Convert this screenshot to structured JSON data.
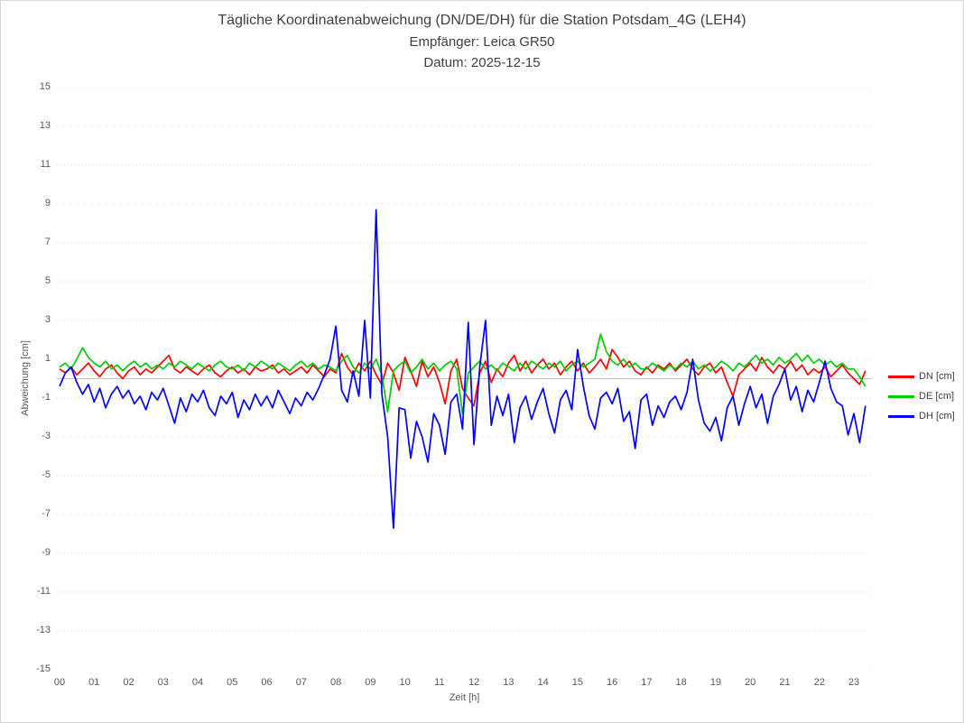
{
  "title": {
    "line1": "Tägliche Koordinatenabweichung (DN/DE/DH) für die Station Potsdam_4G (LEH4)",
    "line2": "Empfänger: Leica GR50",
    "line3": "Datum: 2025-12-15"
  },
  "colors": {
    "dn": "#ff0000",
    "de": "#00cc00",
    "dh": "#0000ff",
    "grid_dotted": "#d9d9d9",
    "grid_zero": "#c0c0c0",
    "tick_text": "#595959",
    "title_text": "#404040",
    "figure_border": "#d6d6d6"
  },
  "chart_data": {
    "type": "line",
    "title": "Tägliche Koordinatenabweichung (DN/DE/DH) für die Station Potsdam_4G (LEH4)",
    "subtitle1": "Empfänger: Leica GR50",
    "subtitle2": "Datum: 2025-12-15",
    "xlabel": "Zeit [h]",
    "ylabel": "Abweichung [cm]",
    "ylim": [
      -15,
      15
    ],
    "xlim_hours": [
      0,
      23.5
    ],
    "yticks": [
      15,
      13,
      11,
      9,
      7,
      5,
      3,
      1,
      -1,
      -3,
      -5,
      -7,
      -9,
      -11,
      -13,
      -15
    ],
    "xticks": [
      "00",
      "01",
      "02",
      "03",
      "04",
      "05",
      "06",
      "07",
      "08",
      "09",
      "10",
      "11",
      "12",
      "13",
      "14",
      "15",
      "16",
      "17",
      "18",
      "19",
      "20",
      "21",
      "22",
      "23"
    ],
    "grid": "horizontal dotted lines at odd values, solid light line at 0, no vertical gridlines",
    "legend_position": "right",
    "x_start_hour": 0,
    "x_step_hours": 0.16667,
    "series": [
      {
        "name": "DN [cm]",
        "color": "#ff0000",
        "values": [
          0.5,
          0.3,
          0.6,
          0.2,
          0.5,
          0.8,
          0.4,
          0.1,
          0.5,
          0.7,
          0.3,
          0.0,
          0.4,
          0.6,
          0.2,
          0.5,
          0.3,
          0.6,
          0.9,
          1.2,
          0.5,
          0.3,
          0.6,
          0.4,
          0.2,
          0.5,
          0.7,
          0.3,
          0.1,
          0.4,
          0.6,
          0.3,
          0.5,
          0.2,
          0.6,
          0.4,
          0.5,
          0.7,
          0.3,
          0.5,
          0.2,
          0.4,
          0.6,
          0.3,
          0.7,
          0.4,
          0.1,
          0.5,
          0.3,
          1.3,
          0.6,
          0.2,
          0.8,
          0.4,
          0.9,
          0.2,
          -0.3,
          0.8,
          0.3,
          -0.6,
          1.1,
          0.4,
          -0.4,
          0.9,
          0.1,
          0.6,
          -0.2,
          -1.3,
          0.4,
          1.0,
          -0.5,
          -1.0,
          -1.4,
          0.3,
          0.9,
          -0.2,
          0.5,
          0.1,
          0.8,
          1.2,
          0.4,
          0.9,
          0.3,
          0.7,
          1.0,
          0.5,
          0.8,
          0.2,
          0.6,
          0.9,
          0.4,
          0.8,
          0.3,
          0.6,
          1.0,
          0.5,
          1.5,
          1.1,
          0.6,
          0.9,
          0.4,
          0.2,
          0.6,
          0.3,
          0.7,
          0.5,
          0.8,
          0.4,
          0.7,
          1.0,
          0.5,
          0.2,
          0.6,
          0.8,
          0.3,
          0.6,
          -0.2,
          -0.9,
          0.2,
          0.5,
          0.8,
          0.4,
          1.1,
          0.6,
          0.3,
          0.7,
          0.5,
          0.9,
          0.4,
          0.7,
          0.2,
          0.5,
          0.3,
          0.6,
          0.1,
          0.4,
          0.7,
          0.3,
          0.0,
          -0.3,
          0.4
        ]
      },
      {
        "name": "DE [cm]",
        "color": "#00cc00",
        "values": [
          0.6,
          0.8,
          0.5,
          1.0,
          1.6,
          1.1,
          0.8,
          0.6,
          0.9,
          0.5,
          0.7,
          0.4,
          0.7,
          0.9,
          0.6,
          0.8,
          0.5,
          0.7,
          0.5,
          0.8,
          0.6,
          0.9,
          0.7,
          0.5,
          0.8,
          0.6,
          0.4,
          0.7,
          0.9,
          0.6,
          0.5,
          0.7,
          0.4,
          0.8,
          0.6,
          0.9,
          0.7,
          0.5,
          0.8,
          0.6,
          0.4,
          0.7,
          0.9,
          0.6,
          0.8,
          0.5,
          0.7,
          0.6,
          0.4,
          0.9,
          1.2,
          0.6,
          0.3,
          0.8,
          0.5,
          1.0,
          0.2,
          -1.7,
          0.4,
          0.7,
          0.9,
          0.3,
          0.6,
          1.0,
          0.5,
          0.8,
          0.4,
          0.7,
          0.9,
          0.5,
          -1.8,
          0.3,
          0.6,
          0.9,
          0.5,
          0.7,
          0.4,
          0.8,
          0.6,
          0.4,
          0.8,
          0.5,
          0.9,
          0.7,
          0.5,
          0.8,
          0.6,
          0.9,
          0.4,
          0.7,
          0.9,
          0.6,
          0.8,
          1.0,
          2.3,
          1.4,
          0.9,
          0.7,
          1.0,
          0.6,
          0.8,
          0.5,
          0.5,
          0.8,
          0.6,
          0.4,
          0.7,
          0.5,
          0.8,
          0.6,
          0.9,
          0.5,
          0.7,
          0.4,
          0.6,
          0.9,
          0.7,
          0.4,
          0.8,
          0.6,
          0.9,
          1.2,
          0.8,
          1.0,
          0.7,
          1.1,
          0.8,
          1.0,
          1.3,
          0.9,
          1.2,
          0.8,
          1.0,
          0.7,
          0.9,
          0.6,
          0.8,
          0.5,
          0.5,
          0.1,
          -0.4
        ]
      },
      {
        "name": "DH [cm]",
        "color": "#0000ff",
        "values": [
          -0.4,
          0.3,
          0.6,
          -0.2,
          -0.8,
          -0.3,
          -1.2,
          -0.5,
          -1.5,
          -0.8,
          -0.4,
          -1.0,
          -0.6,
          -1.3,
          -0.9,
          -1.6,
          -0.7,
          -1.1,
          -0.5,
          -1.4,
          -2.3,
          -1.0,
          -1.7,
          -0.8,
          -1.2,
          -0.6,
          -1.5,
          -1.9,
          -0.9,
          -1.3,
          -0.7,
          -2.0,
          -1.1,
          -1.6,
          -0.8,
          -1.4,
          -0.9,
          -1.5,
          -0.6,
          -1.2,
          -1.8,
          -1.0,
          -1.4,
          -0.7,
          -1.1,
          -0.5,
          0.2,
          1.0,
          2.7,
          -0.6,
          -1.2,
          0.4,
          -0.9,
          3.0,
          -1.0,
          8.7,
          -0.8,
          -3.0,
          -7.7,
          -1.5,
          -1.6,
          -4.1,
          -2.2,
          -3.0,
          -4.3,
          -1.8,
          -2.4,
          -3.9,
          -1.2,
          -0.8,
          -2.6,
          2.9,
          -3.4,
          0.6,
          3.0,
          -2.4,
          -0.9,
          -1.9,
          -0.8,
          -3.3,
          -1.5,
          -0.9,
          -2.1,
          -1.2,
          -0.5,
          -1.8,
          -2.8,
          -1.1,
          -0.6,
          -1.6,
          1.5,
          -0.4,
          -1.9,
          -2.6,
          -1.0,
          -0.7,
          -1.3,
          -0.5,
          -2.2,
          -1.7,
          -3.6,
          -1.1,
          -0.8,
          -2.4,
          -1.4,
          -2.0,
          -1.2,
          -0.9,
          -1.6,
          -0.7,
          1.0,
          -1.1,
          -2.3,
          -2.7,
          -2.0,
          -3.2,
          -1.5,
          -0.9,
          -2.4,
          -1.3,
          -0.4,
          -1.5,
          -0.8,
          -2.3,
          -0.9,
          -0.3,
          0.5,
          -1.1,
          -0.4,
          -1.7,
          -0.6,
          -1.2,
          -0.2,
          0.9,
          -0.5,
          -1.2,
          -1.4,
          -2.9,
          -1.8,
          -3.3,
          -1.4
        ]
      }
    ]
  }
}
